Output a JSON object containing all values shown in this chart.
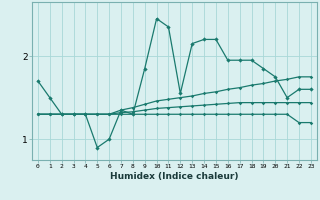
{
  "xlabel": "Humidex (Indice chaleur)",
  "x": [
    0,
    1,
    2,
    3,
    4,
    5,
    6,
    7,
    8,
    9,
    10,
    11,
    12,
    13,
    14,
    15,
    16,
    17,
    18,
    19,
    20,
    21,
    22,
    23
  ],
  "line1": [
    1.7,
    1.5,
    1.3,
    1.3,
    1.3,
    0.9,
    1.0,
    1.35,
    1.3,
    1.85,
    2.45,
    2.35,
    1.55,
    2.15,
    2.2,
    2.2,
    1.95,
    1.95,
    1.95,
    1.85,
    1.75,
    1.5,
    1.6,
    1.6
  ],
  "line2": [
    1.3,
    1.3,
    1.3,
    1.3,
    1.3,
    1.3,
    1.3,
    1.35,
    1.38,
    1.42,
    1.46,
    1.48,
    1.5,
    1.52,
    1.55,
    1.57,
    1.6,
    1.62,
    1.65,
    1.67,
    1.7,
    1.72,
    1.75,
    1.75
  ],
  "line3": [
    1.3,
    1.3,
    1.3,
    1.3,
    1.3,
    1.3,
    1.3,
    1.32,
    1.33,
    1.35,
    1.37,
    1.38,
    1.39,
    1.4,
    1.41,
    1.42,
    1.43,
    1.44,
    1.44,
    1.44,
    1.44,
    1.44,
    1.44,
    1.44
  ],
  "line4": [
    1.3,
    1.3,
    1.3,
    1.3,
    1.3,
    1.3,
    1.3,
    1.3,
    1.3,
    1.3,
    1.3,
    1.3,
    1.3,
    1.3,
    1.3,
    1.3,
    1.3,
    1.3,
    1.3,
    1.3,
    1.3,
    1.3,
    1.2,
    1.2
  ],
  "bg_color": "#daf0f0",
  "line_color": "#1a7a6e",
  "grid_color": "#a8d8d8",
  "ylim": [
    0.75,
    2.65
  ],
  "yticks": [
    1,
    2
  ],
  "xlim": [
    -0.5,
    23.5
  ]
}
